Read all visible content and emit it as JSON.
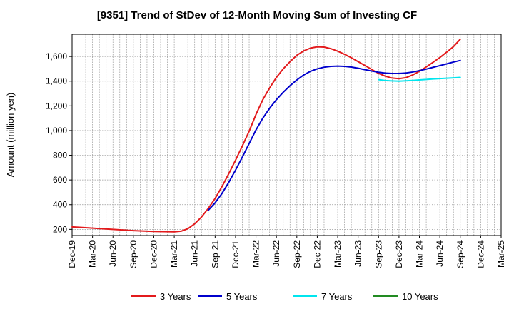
{
  "chart_data": {
    "type": "line",
    "title": "[9351]  Trend of StDev of 12-Month Moving Sum of Investing CF",
    "ylabel": "Amount (million yen)",
    "xlabel": "",
    "ylim": [
      150,
      1780
    ],
    "yticks": [
      200,
      400,
      600,
      800,
      1000,
      1200,
      1400,
      1600
    ],
    "ytick_labels": [
      "200",
      "400",
      "600",
      "800",
      "1,000",
      "1,200",
      "1,400",
      "1,600"
    ],
    "xticks": [
      "Dec-19",
      "Mar-20",
      "Jun-20",
      "Sep-20",
      "Dec-20",
      "Mar-21",
      "Jun-21",
      "Sep-21",
      "Dec-21",
      "Mar-22",
      "Jun-22",
      "Sep-22",
      "Dec-22",
      "Mar-23",
      "Jun-23",
      "Sep-23",
      "Dec-23",
      "Mar-24",
      "Jun-24",
      "Sep-24",
      "Dec-24",
      "Mar-25"
    ],
    "grid": true,
    "legend_position": "bottom",
    "series": [
      {
        "name": "3 Years",
        "color": "#e31a1c",
        "points": [
          [
            "Dec-19",
            220
          ],
          [
            "Mar-20",
            210
          ],
          [
            "Jun-20",
            200
          ],
          [
            "Sep-20",
            190
          ],
          [
            "Dec-20",
            183
          ],
          [
            "Mar-21",
            180
          ],
          [
            "Apr-21",
            185
          ],
          [
            "May-21",
            205
          ],
          [
            "Jun-21",
            245
          ],
          [
            "Jul-21",
            300
          ],
          [
            "Aug-21",
            370
          ],
          [
            "Sep-21",
            450
          ],
          [
            "Oct-21",
            545
          ],
          [
            "Nov-21",
            650
          ],
          [
            "Dec-21",
            760
          ],
          [
            "Jan-22",
            875
          ],
          [
            "Feb-22",
            995
          ],
          [
            "Mar-22",
            1130
          ],
          [
            "Apr-22",
            1250
          ],
          [
            "May-22",
            1345
          ],
          [
            "Jun-22",
            1430
          ],
          [
            "Jul-22",
            1500
          ],
          [
            "Aug-22",
            1558
          ],
          [
            "Sep-22",
            1610
          ],
          [
            "Oct-22",
            1645
          ],
          [
            "Nov-22",
            1668
          ],
          [
            "Dec-22",
            1678
          ],
          [
            "Jan-23",
            1676
          ],
          [
            "Feb-23",
            1663
          ],
          [
            "Mar-23",
            1643
          ],
          [
            "Apr-23",
            1618
          ],
          [
            "May-23",
            1590
          ],
          [
            "Jun-23",
            1558
          ],
          [
            "Jul-23",
            1527
          ],
          [
            "Aug-23",
            1495
          ],
          [
            "Sep-23",
            1463
          ],
          [
            "Oct-23",
            1440
          ],
          [
            "Nov-23",
            1425
          ],
          [
            "Dec-23",
            1420
          ],
          [
            "Jan-24",
            1428
          ],
          [
            "Feb-24",
            1450
          ],
          [
            "Mar-24",
            1480
          ],
          [
            "Apr-24",
            1515
          ],
          [
            "May-24",
            1553
          ],
          [
            "Jun-24",
            1592
          ],
          [
            "Jul-24",
            1635
          ],
          [
            "Aug-24",
            1680
          ],
          [
            "Sep-24",
            1740
          ]
        ]
      },
      {
        "name": "5 Years",
        "color": "#0000cc",
        "points": [
          [
            "Aug-21",
            355
          ],
          [
            "Sep-21",
            415
          ],
          [
            "Oct-21",
            490
          ],
          [
            "Nov-21",
            580
          ],
          [
            "Dec-21",
            680
          ],
          [
            "Jan-22",
            785
          ],
          [
            "Feb-22",
            895
          ],
          [
            "Mar-22",
            1005
          ],
          [
            "Apr-22",
            1100
          ],
          [
            "May-22",
            1180
          ],
          [
            "Jun-22",
            1250
          ],
          [
            "Jul-22",
            1310
          ],
          [
            "Aug-22",
            1363
          ],
          [
            "Sep-22",
            1410
          ],
          [
            "Oct-22",
            1450
          ],
          [
            "Nov-22",
            1480
          ],
          [
            "Dec-22",
            1500
          ],
          [
            "Jan-23",
            1513
          ],
          [
            "Feb-23",
            1520
          ],
          [
            "Mar-23",
            1522
          ],
          [
            "Apr-23",
            1520
          ],
          [
            "May-23",
            1514
          ],
          [
            "Jun-23",
            1505
          ],
          [
            "Jul-23",
            1493
          ],
          [
            "Aug-23",
            1482
          ],
          [
            "Sep-23",
            1472
          ],
          [
            "Oct-23",
            1465
          ],
          [
            "Nov-23",
            1462
          ],
          [
            "Dec-23",
            1462
          ],
          [
            "Jan-24",
            1466
          ],
          [
            "Feb-24",
            1474
          ],
          [
            "Mar-24",
            1485
          ],
          [
            "Apr-24",
            1498
          ],
          [
            "May-24",
            1512
          ],
          [
            "Jun-24",
            1526
          ],
          [
            "Jul-24",
            1540
          ],
          [
            "Aug-24",
            1555
          ],
          [
            "Sep-24",
            1568
          ]
        ]
      },
      {
        "name": "7 Years",
        "color": "#00e5ee",
        "points": [
          [
            "Sep-23",
            1412
          ],
          [
            "Oct-23",
            1405
          ],
          [
            "Nov-23",
            1402
          ],
          [
            "Dec-23",
            1400
          ],
          [
            "Jan-24",
            1403
          ],
          [
            "Feb-24",
            1406
          ],
          [
            "Mar-24",
            1410
          ],
          [
            "Apr-24",
            1414
          ],
          [
            "May-24",
            1418
          ],
          [
            "Jun-24",
            1421
          ],
          [
            "Jul-24",
            1424
          ],
          [
            "Aug-24",
            1427
          ],
          [
            "Sep-24",
            1430
          ]
        ]
      },
      {
        "name": "10 Years",
        "color": "#228b22",
        "points": []
      }
    ]
  }
}
